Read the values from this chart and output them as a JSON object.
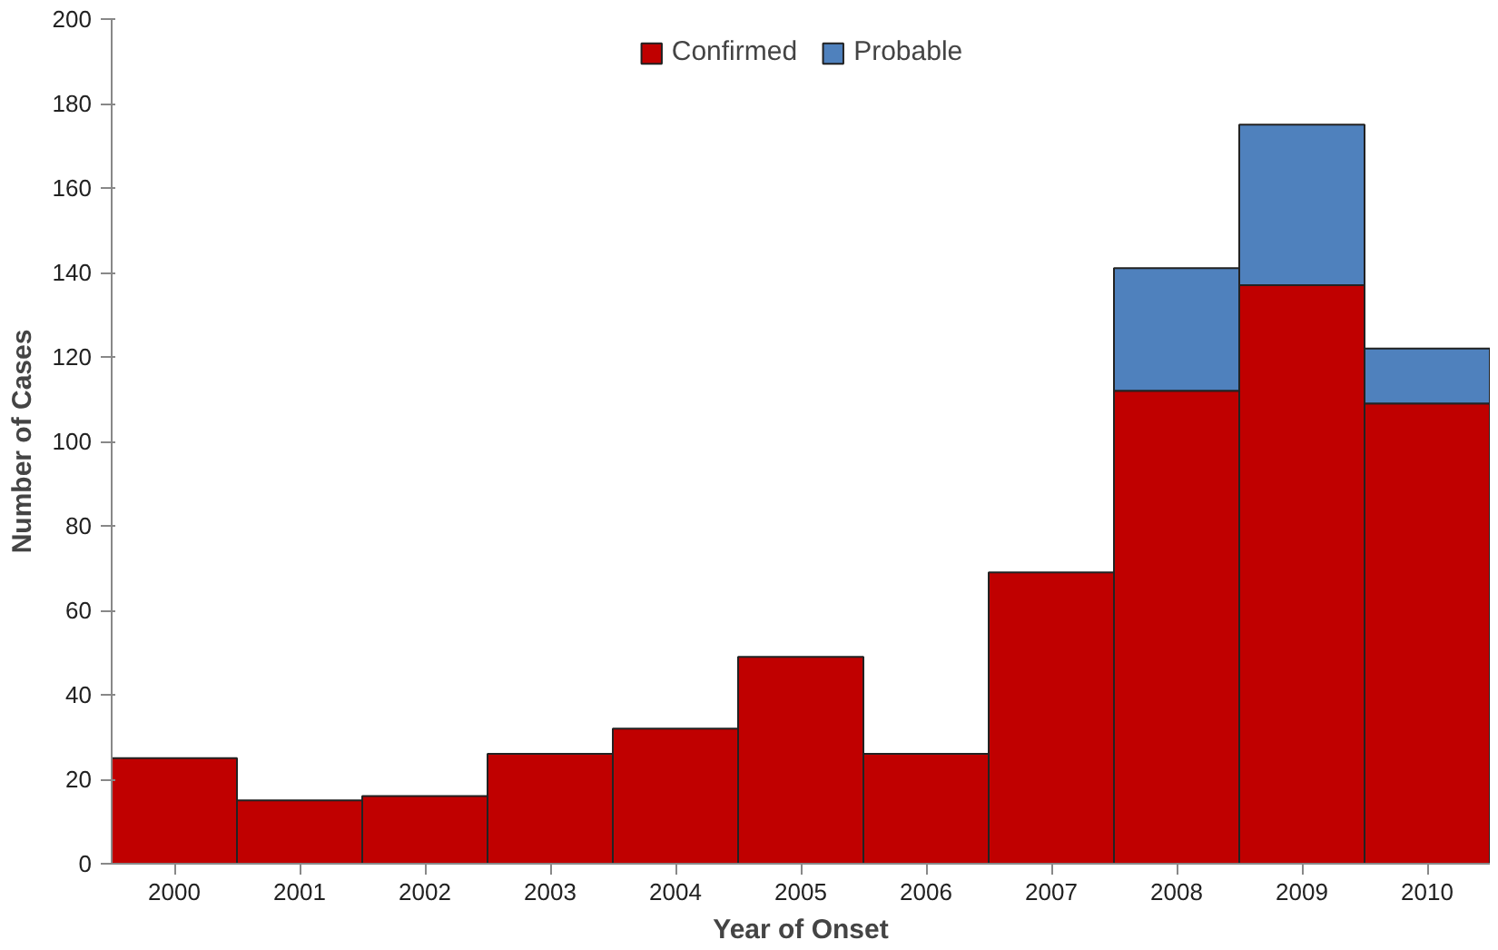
{
  "chart_data": {
    "type": "bar",
    "stacked": true,
    "xlabel": "Year of Onset",
    "ylabel": "Number of Cases",
    "categories": [
      "2000",
      "2001",
      "2002",
      "2003",
      "2004",
      "2005",
      "2006",
      "2007",
      "2008",
      "2009",
      "2010"
    ],
    "series": [
      {
        "name": "Confirmed",
        "color": "#c00000",
        "values": [
          25,
          15,
          16,
          26,
          32,
          49,
          26,
          69,
          112,
          137,
          109
        ]
      },
      {
        "name": "Probable",
        "color": "#4f81bd",
        "values": [
          null,
          null,
          null,
          null,
          null,
          null,
          null,
          null,
          29,
          38,
          13
        ]
      }
    ],
    "ylim": [
      0,
      200
    ],
    "yticks": [
      0,
      20,
      40,
      60,
      80,
      100,
      120,
      140,
      160,
      180,
      200
    ],
    "grid": false,
    "legend": "top"
  }
}
